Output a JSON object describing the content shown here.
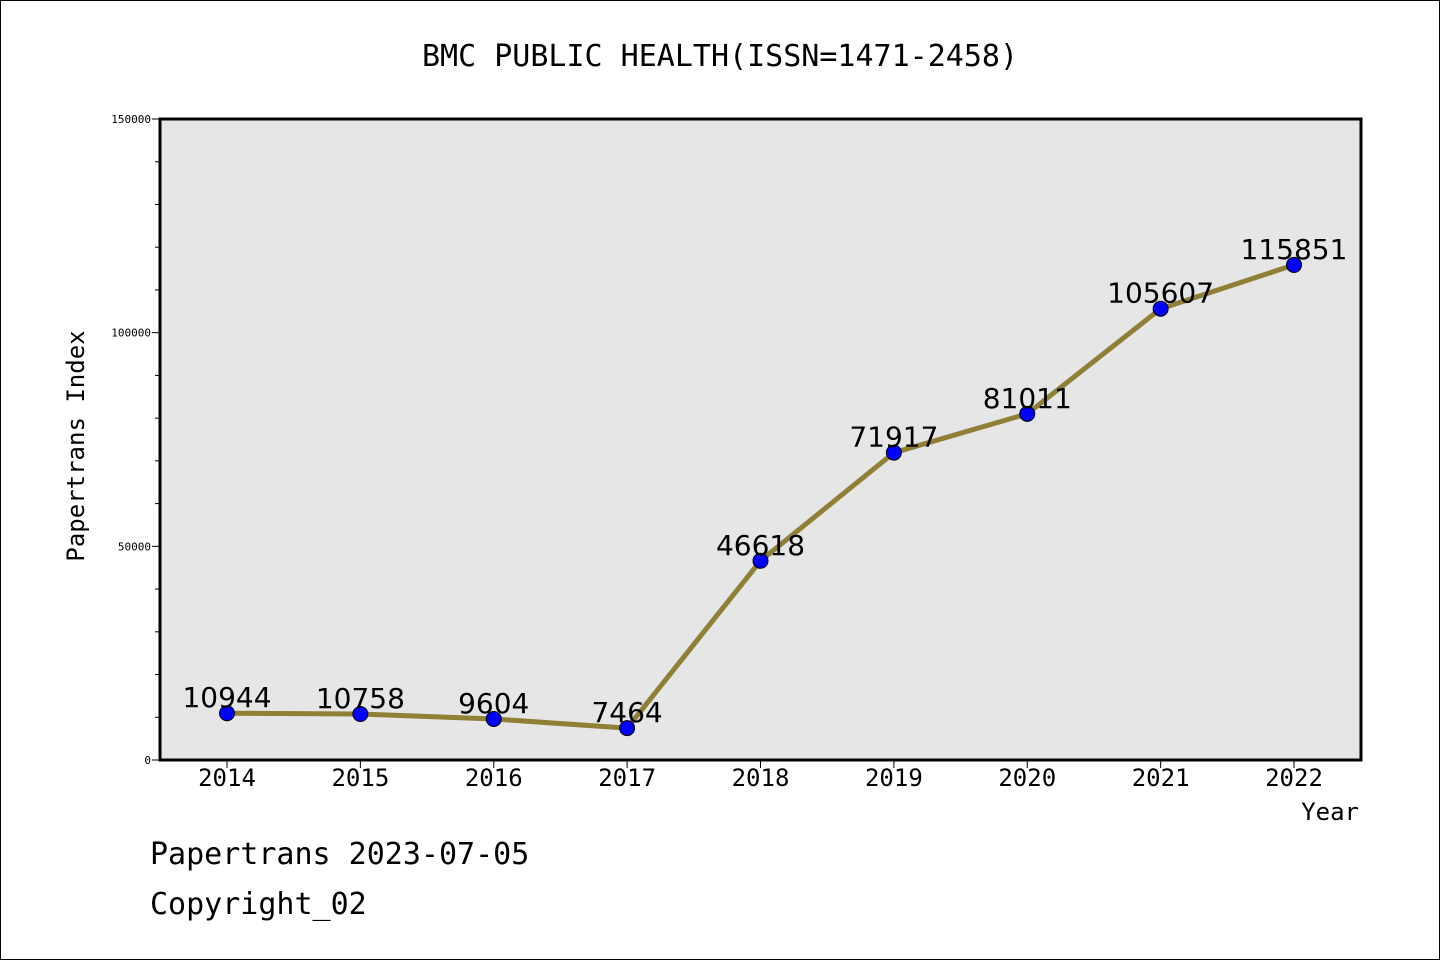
{
  "footer": {
    "line1": "Papertrans 2023-07-05",
    "line2": "Copyright_02"
  },
  "chart_data": {
    "type": "line",
    "title": "BMC PUBLIC HEALTH(ISSN=1471-2458)",
    "xlabel": "Year",
    "ylabel": "Papertrans Index",
    "categories": [
      "2014",
      "2015",
      "2016",
      "2017",
      "2018",
      "2019",
      "2020",
      "2021",
      "2022"
    ],
    "series": [
      {
        "values": [
          10944,
          10758,
          9604,
          7464,
          46618,
          71917,
          81011,
          105607,
          115851
        ],
        "line_color": "#8f8035",
        "marker_color": "#0000ff"
      }
    ],
    "data_labels": [
      "10944",
      "10758",
      "9604",
      "7464",
      "46618",
      "71917",
      "81011",
      "105607",
      "115851"
    ],
    "ylim": [
      0,
      150000
    ],
    "yticks": [
      "0",
      "50000",
      "100000",
      "150000"
    ],
    "grid": false,
    "plot_background": "#e6e6e6"
  }
}
